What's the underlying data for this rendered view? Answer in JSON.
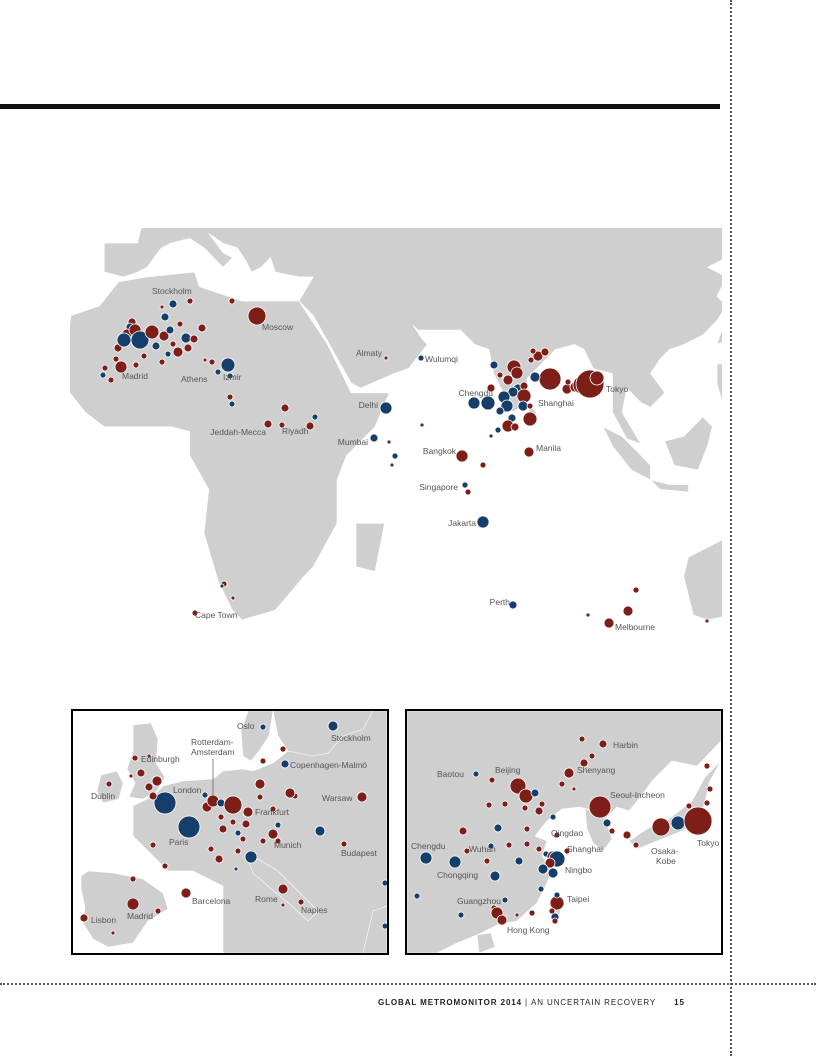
{
  "colors": {
    "land": "#cfcfcf",
    "red": "#7d1e19",
    "blue": "#163e6b",
    "ring": "#ffffff"
  },
  "main_map": {
    "labels": [
      {
        "text": "Stockholm",
        "lon": 18.1,
        "lat": 59.3
      },
      {
        "text": "Moscow",
        "lon": 37.6,
        "lat": 55.8
      },
      {
        "text": "Madrid",
        "lon": -3.7,
        "lat": 40.4
      },
      {
        "text": "Athens",
        "lon": 23.7,
        "lat": 38.0
      },
      {
        "text": "Izmir",
        "lon": 27.1,
        "lat": 38.4
      },
      {
        "text": "Almaty",
        "lon": 76.9,
        "lat": 43.2
      },
      {
        "text": "Wulumqi",
        "lon": 87.6,
        "lat": 43.8
      },
      {
        "text": "Delhi",
        "lon": 77.2,
        "lat": 28.6
      },
      {
        "text": "Jeddah-Mecca",
        "lon": 39.5,
        "lat": 21.5
      },
      {
        "text": "Riyadh",
        "lon": 46.7,
        "lat": 24.7
      },
      {
        "text": "Mumbai",
        "lon": 72.9,
        "lat": 19.1
      },
      {
        "text": "Chengdu",
        "lon": 104.1,
        "lat": 30.7
      },
      {
        "text": "Shanghai",
        "lon": 121.5,
        "lat": 31.2
      },
      {
        "text": "Tokyo",
        "lon": 139.7,
        "lat": 35.7
      },
      {
        "text": "Bangkok",
        "lon": 100.5,
        "lat": 13.8
      },
      {
        "text": "Manila",
        "lon": 121.0,
        "lat": 14.6
      },
      {
        "text": "Singapore",
        "lon": 103.8,
        "lat": 1.35
      },
      {
        "text": "Jakarta",
        "lon": 106.8,
        "lat": -6.2
      },
      {
        "text": "Cape Town",
        "lon": 18.4,
        "lat": -33.9
      },
      {
        "text": "Perth",
        "lon": 115.9,
        "lat": -31.9
      },
      {
        "text": "Melbourne",
        "lon": 145.0,
        "lat": -37.8
      }
    ]
  },
  "inset_europe": {
    "labels": [
      {
        "text": "Oslo"
      },
      {
        "text": "Stockholm"
      },
      {
        "text": "Rotterdam-"
      },
      {
        "text": "Amsterdam"
      },
      {
        "text": "Edinburgh"
      },
      {
        "text": "Copenhagen-Malmö"
      },
      {
        "text": "London"
      },
      {
        "text": "Dublin"
      },
      {
        "text": "Frankfurt"
      },
      {
        "text": "Warsaw"
      },
      {
        "text": "Paris"
      },
      {
        "text": "Munich"
      },
      {
        "text": "Budapest"
      },
      {
        "text": "Barcelona"
      },
      {
        "text": "Rome"
      },
      {
        "text": "Madrid"
      },
      {
        "text": "Naples"
      },
      {
        "text": "Lisbon"
      }
    ]
  },
  "inset_asia": {
    "labels": [
      {
        "text": "Harbin"
      },
      {
        "text": "Baotou"
      },
      {
        "text": "Beijing"
      },
      {
        "text": "Shenyang"
      },
      {
        "text": "Seoul-Incheon"
      },
      {
        "text": "Qingdao"
      },
      {
        "text": "Chengdu"
      },
      {
        "text": "Wuhan"
      },
      {
        "text": "Shanghai"
      },
      {
        "text": "Osaka-"
      },
      {
        "text": "Kobe"
      },
      {
        "text": "Tokyo"
      },
      {
        "text": "Chongqing"
      },
      {
        "text": "Ningbo"
      },
      {
        "text": "Taipei"
      },
      {
        "text": "Guangzhou"
      },
      {
        "text": "Hong Kong"
      }
    ]
  },
  "footer": {
    "title": "GLOBAL METROMONITOR 2014",
    "separator": "|",
    "subtitle": "AN UNCERTAIN RECOVERY",
    "page_number": "15"
  }
}
